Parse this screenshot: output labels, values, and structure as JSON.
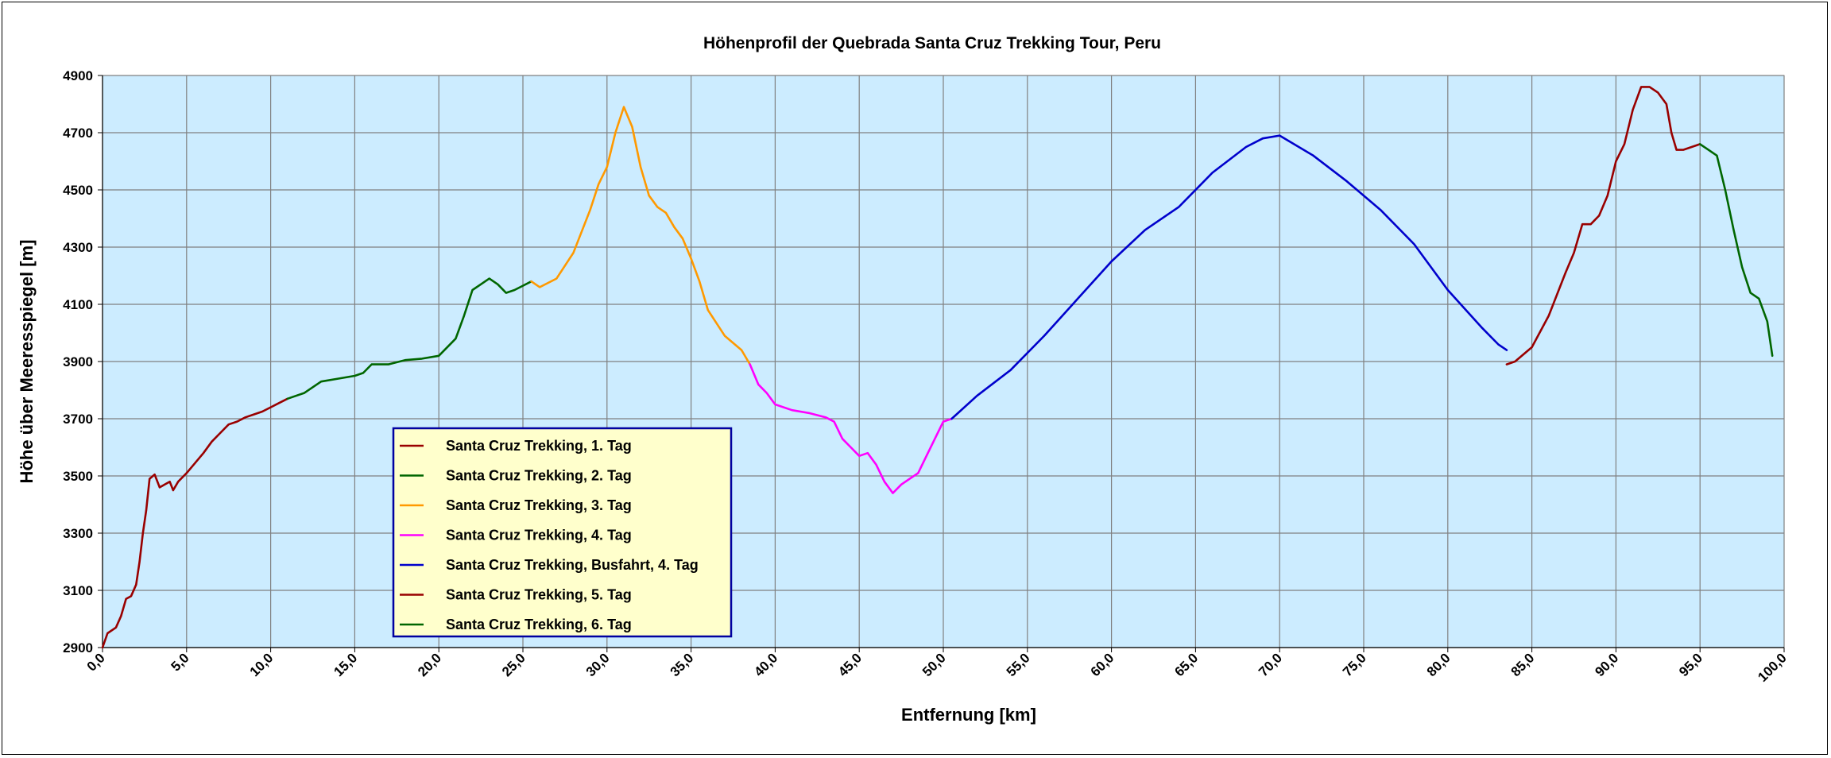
{
  "chart_data": {
    "type": "line",
    "title": "Höhenprofil der Quebrada Santa Cruz Trekking Tour, Peru",
    "xlabel": "Entfernung [km]",
    "ylabel": "Höhe über Meeresspiegel [m]",
    "xlim": [
      0,
      100
    ],
    "ylim": [
      2900,
      4900
    ],
    "x_ticks": [
      "0,0",
      "5,0",
      "10,0",
      "15,0",
      "20,0",
      "25,0",
      "30,0",
      "35,0",
      "40,0",
      "45,0",
      "50,0",
      "55,0",
      "60,0",
      "65,0",
      "70,0",
      "75,0",
      "80,0",
      "85,0",
      "90,0",
      "95,0",
      "100,0"
    ],
    "y_ticks": [
      "2900",
      "3100",
      "3300",
      "3500",
      "3700",
      "3900",
      "4100",
      "4300",
      "4500",
      "4700",
      "4900"
    ],
    "grid": true,
    "plot_background": "#CCECFF",
    "legend_background": "#FFFFCC",
    "legend_border": "#0000A0",
    "legend_placement": "lower-center-left",
    "series": [
      {
        "name": "Santa Cruz Trekking, 1. Tag",
        "color": "#990000",
        "x": [
          0,
          0.3,
          0.8,
          1.1,
          1.4,
          1.7,
          2.0,
          2.2,
          2.4,
          2.6,
          2.8,
          3.1,
          3.4,
          3.7,
          4.0,
          4.2,
          4.5,
          5.0,
          5.5,
          6.0,
          6.5,
          7.0,
          7.5,
          8.0,
          8.5,
          9.0,
          9.5,
          10.0,
          10.5,
          11.0
        ],
        "y": [
          2900,
          2950,
          2970,
          3010,
          3070,
          3080,
          3120,
          3200,
          3300,
          3380,
          3490,
          3505,
          3460,
          3470,
          3480,
          3450,
          3480,
          3510,
          3545,
          3580,
          3620,
          3650,
          3680,
          3690,
          3705,
          3715,
          3725,
          3740,
          3755,
          3770
        ]
      },
      {
        "name": "Santa Cruz Trekking, 2. Tag",
        "color": "#006600",
        "x": [
          11.0,
          12.0,
          13.0,
          14.0,
          15.0,
          15.5,
          16.0,
          17.0,
          18.0,
          19.0,
          20.0,
          21.0,
          21.5,
          22.0,
          22.5,
          23.0,
          23.5,
          24.0,
          24.5,
          25.0,
          25.5
        ],
        "y": [
          3770,
          3790,
          3830,
          3840,
          3850,
          3860,
          3890,
          3890,
          3905,
          3910,
          3920,
          3980,
          4060,
          4150,
          4170,
          4190,
          4170,
          4140,
          4150,
          4165,
          4180
        ]
      },
      {
        "name": "Santa Cruz Trekking, 3. Tag",
        "color": "#FF9900",
        "x": [
          25.5,
          26.0,
          27.0,
          28.0,
          29.0,
          29.5,
          30.0,
          30.5,
          31.0,
          31.5,
          32.0,
          32.5,
          33.0,
          33.5,
          34.0,
          34.5,
          35.0,
          35.5,
          36.0,
          37.0,
          38.0,
          38.5
        ],
        "y": [
          4180,
          4160,
          4190,
          4280,
          4430,
          4520,
          4580,
          4700,
          4790,
          4720,
          4580,
          4480,
          4440,
          4420,
          4370,
          4330,
          4260,
          4180,
          4080,
          3990,
          3940,
          3890
        ]
      },
      {
        "name": "Santa Cruz Trekking, 4. Tag",
        "color": "#FF00FF",
        "x": [
          38.5,
          39.0,
          39.5,
          40.0,
          41.0,
          42.0,
          43.0,
          43.5,
          44.0,
          44.5,
          45.0,
          45.5,
          46.0,
          46.5,
          47.0,
          47.5,
          48.0,
          48.5,
          49.0,
          49.5,
          50.0,
          50.5
        ],
        "y": [
          3890,
          3820,
          3790,
          3750,
          3730,
          3720,
          3705,
          3690,
          3630,
          3600,
          3570,
          3580,
          3540,
          3480,
          3440,
          3470,
          3490,
          3510,
          3570,
          3630,
          3690,
          3700
        ]
      },
      {
        "name": "Santa Cruz Trekking, Busfahrt, 4. Tag",
        "color": "#0000CC",
        "x": [
          50.5,
          52.0,
          54.0,
          56.0,
          58.0,
          60.0,
          62.0,
          64.0,
          66.0,
          68.0,
          69.0,
          70.0,
          72.0,
          74.0,
          76.0,
          78.0,
          80.0,
          82.0,
          83.0,
          83.5
        ],
        "y": [
          3700,
          3780,
          3870,
          3990,
          4120,
          4250,
          4360,
          4440,
          4560,
          4650,
          4680,
          4690,
          4620,
          4530,
          4430,
          4310,
          4150,
          4020,
          3960,
          3940
        ]
      },
      {
        "name": "Santa Cruz Trekking, 5. Tag",
        "color": "#990000",
        "x": [
          83.5,
          84.0,
          85.0,
          86.0,
          87.0,
          87.5,
          88.0,
          88.5,
          89.0,
          89.5,
          90.0,
          90.5,
          91.0,
          91.5,
          92.0,
          92.5,
          93.0,
          93.3,
          93.6,
          94.0,
          94.5,
          95.0
        ],
        "y": [
          3890,
          3900,
          3950,
          4060,
          4210,
          4280,
          4380,
          4380,
          4410,
          4480,
          4600,
          4660,
          4780,
          4860,
          4860,
          4840,
          4800,
          4700,
          4640,
          4640,
          4650,
          4660
        ]
      },
      {
        "name": "Santa Cruz Trekking, 6. Tag",
        "color": "#006600",
        "x": [
          95.0,
          95.5,
          96.0,
          96.5,
          97.0,
          97.5,
          98.0,
          98.5,
          99.0,
          99.3
        ],
        "y": [
          4660,
          4640,
          4620,
          4500,
          4360,
          4230,
          4140,
          4120,
          4040,
          3920
        ]
      }
    ]
  }
}
